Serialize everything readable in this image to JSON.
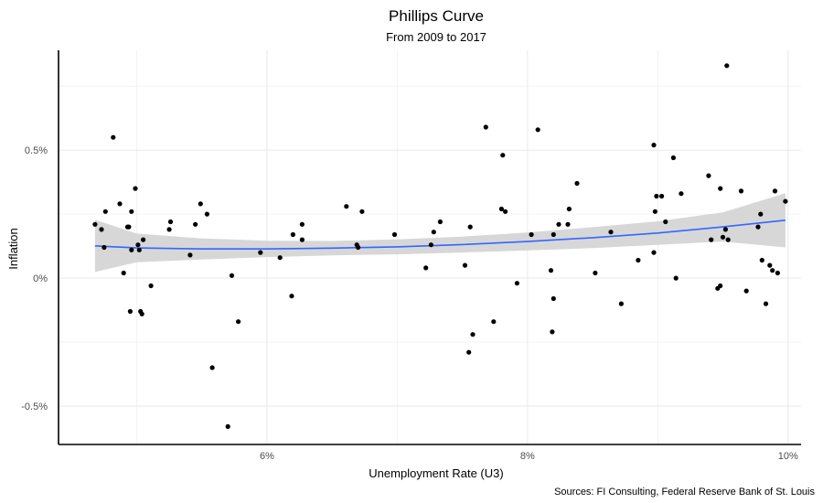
{
  "chart_data": {
    "type": "scatter",
    "title": "Phillips Curve",
    "subtitle": "From 2009 to 2017",
    "xlabel": "Unemployment Rate (U3)",
    "ylabel": "Inflation",
    "caption": "Sources: FI Consulting, Federal Reserve Bank of St. Louis",
    "x_ticks": [
      6,
      8,
      10
    ],
    "x_tick_labels": [
      "6%",
      "8%",
      "10%"
    ],
    "y_ticks": [
      -0.5,
      0,
      0.5
    ],
    "y_tick_labels": [
      "-0.5%",
      "0%",
      "0.5%"
    ],
    "xlim": [
      4.4,
      10.1
    ],
    "ylim": [
      -0.65,
      0.89
    ],
    "grid": true,
    "points": [
      [
        4.68,
        0.21
      ],
      [
        4.73,
        0.19
      ],
      [
        4.76,
        0.26
      ],
      [
        4.75,
        0.12
      ],
      [
        4.82,
        0.55
      ],
      [
        4.87,
        0.29
      ],
      [
        4.9,
        0.02
      ],
      [
        4.93,
        0.2
      ],
      [
        4.94,
        0.2
      ],
      [
        4.96,
        0.11
      ],
      [
        4.96,
        0.26
      ],
      [
        4.95,
        -0.13
      ],
      [
        4.99,
        0.35
      ],
      [
        5.01,
        0.13
      ],
      [
        5.02,
        0.11
      ],
      [
        5.03,
        -0.13
      ],
      [
        5.04,
        -0.14
      ],
      [
        5.05,
        0.15
      ],
      [
        5.11,
        -0.03
      ],
      [
        5.25,
        0.19
      ],
      [
        5.26,
        0.22
      ],
      [
        5.41,
        0.09
      ],
      [
        5.45,
        0.21
      ],
      [
        5.49,
        0.29
      ],
      [
        5.54,
        0.25
      ],
      [
        5.58,
        -0.35
      ],
      [
        5.7,
        -0.58
      ],
      [
        5.73,
        0.01
      ],
      [
        5.78,
        -0.17
      ],
      [
        5.95,
        0.1
      ],
      [
        6.1,
        0.08
      ],
      [
        6.19,
        -0.07
      ],
      [
        6.2,
        0.17
      ],
      [
        6.27,
        0.15
      ],
      [
        6.27,
        0.21
      ],
      [
        6.61,
        0.28
      ],
      [
        6.69,
        0.13
      ],
      [
        6.7,
        0.12
      ],
      [
        6.73,
        0.26
      ],
      [
        6.98,
        0.17
      ],
      [
        7.22,
        0.04
      ],
      [
        7.26,
        0.13
      ],
      [
        7.28,
        0.18
      ],
      [
        7.33,
        0.22
      ],
      [
        7.52,
        0.05
      ],
      [
        7.55,
        -0.29
      ],
      [
        7.56,
        0.2
      ],
      [
        7.58,
        -0.22
      ],
      [
        7.68,
        0.59
      ],
      [
        7.74,
        -0.17
      ],
      [
        7.8,
        0.27
      ],
      [
        7.81,
        0.48
      ],
      [
        7.83,
        0.26
      ],
      [
        7.92,
        -0.02
      ],
      [
        8.03,
        0.17
      ],
      [
        8.08,
        0.58
      ],
      [
        8.18,
        0.03
      ],
      [
        8.19,
        -0.21
      ],
      [
        8.2,
        0.17
      ],
      [
        8.2,
        -0.08
      ],
      [
        8.24,
        0.21
      ],
      [
        8.31,
        0.21
      ],
      [
        8.32,
        0.27
      ],
      [
        8.38,
        0.37
      ],
      [
        8.52,
        0.02
      ],
      [
        8.64,
        0.18
      ],
      [
        8.72,
        -0.1
      ],
      [
        8.85,
        0.07
      ],
      [
        8.97,
        0.52
      ],
      [
        8.97,
        0.1
      ],
      [
        8.98,
        0.26
      ],
      [
        8.99,
        0.32
      ],
      [
        9.03,
        0.32
      ],
      [
        9.06,
        0.22
      ],
      [
        9.12,
        0.47
      ],
      [
        9.14,
        0.0
      ],
      [
        9.18,
        0.33
      ],
      [
        9.39,
        0.4
      ],
      [
        9.41,
        0.15
      ],
      [
        9.46,
        -0.04
      ],
      [
        9.48,
        -0.03
      ],
      [
        9.48,
        0.35
      ],
      [
        9.5,
        0.16
      ],
      [
        9.52,
        0.19
      ],
      [
        9.53,
        0.83
      ],
      [
        9.54,
        0.15
      ],
      [
        9.64,
        0.34
      ],
      [
        9.68,
        -0.05
      ],
      [
        9.77,
        0.2
      ],
      [
        9.79,
        0.25
      ],
      [
        9.8,
        0.07
      ],
      [
        9.83,
        -0.1
      ],
      [
        9.86,
        0.05
      ],
      [
        9.88,
        0.03
      ],
      [
        9.9,
        0.34
      ],
      [
        9.92,
        0.02
      ],
      [
        9.98,
        0.3
      ]
    ],
    "smooth": {
      "x": [
        4.68,
        5.0,
        5.5,
        6.0,
        6.5,
        7.0,
        7.5,
        8.0,
        8.5,
        9.0,
        9.5,
        9.98
      ],
      "y": [
        0.126,
        0.118,
        0.114,
        0.114,
        0.117,
        0.122,
        0.131,
        0.143,
        0.158,
        0.176,
        0.2,
        0.226
      ],
      "lower": [
        0.024,
        0.062,
        0.073,
        0.082,
        0.089,
        0.093,
        0.1,
        0.108,
        0.117,
        0.13,
        0.143,
        0.12
      ],
      "upper": [
        0.228,
        0.174,
        0.155,
        0.146,
        0.145,
        0.151,
        0.162,
        0.178,
        0.199,
        0.222,
        0.257,
        0.332
      ]
    },
    "colors": {
      "points": "#000000",
      "smooth_line": "#3366ff",
      "ribbon": "#d3d3d3",
      "grid": "#ebebeb"
    }
  }
}
